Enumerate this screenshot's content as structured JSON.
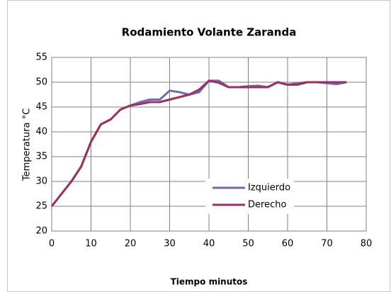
{
  "chart_data": {
    "type": "line",
    "title": "Rodamiento Volante Zaranda",
    "xlabel": "Tiempo minutos",
    "ylabel": "Temperatura °C",
    "x": [
      0,
      2.5,
      5,
      7.5,
      10,
      12.5,
      15,
      17.5,
      20,
      22.5,
      25,
      27.5,
      30,
      32.5,
      35,
      37.5,
      40,
      42.5,
      45,
      47.5,
      50,
      52.5,
      55,
      57.5,
      60,
      62.5,
      65,
      67.5,
      70,
      72.5,
      75
    ],
    "series": [
      {
        "name": "Izquierdo",
        "color": "#6b6fb0",
        "values": [
          25,
          27.5,
          30,
          33,
          38,
          41.5,
          42.5,
          44.5,
          45.3,
          46,
          46.5,
          46.5,
          48.3,
          48,
          47.5,
          48,
          50.3,
          50.3,
          49,
          49,
          49.2,
          49.3,
          49,
          50,
          49.5,
          49.8,
          50,
          50,
          49.8,
          49.6,
          50
        ]
      },
      {
        "name": "Derecho",
        "color": "#9b3060",
        "values": [
          25,
          27.5,
          30,
          33,
          38,
          41.5,
          42.5,
          44.5,
          45.3,
          45.6,
          46,
          46,
          46.5,
          47,
          47.5,
          48.5,
          50.3,
          49.9,
          49,
          49,
          49,
          49,
          49,
          50,
          49.5,
          49.5,
          50,
          50,
          50,
          50,
          50
        ]
      }
    ],
    "xlim": [
      0,
      80
    ],
    "xticks": [
      0,
      10,
      20,
      30,
      40,
      50,
      60,
      70,
      80
    ],
    "ylim": [
      20,
      55
    ],
    "yticks": [
      20,
      25,
      30,
      35,
      40,
      45,
      50,
      55
    ],
    "grid": true
  }
}
